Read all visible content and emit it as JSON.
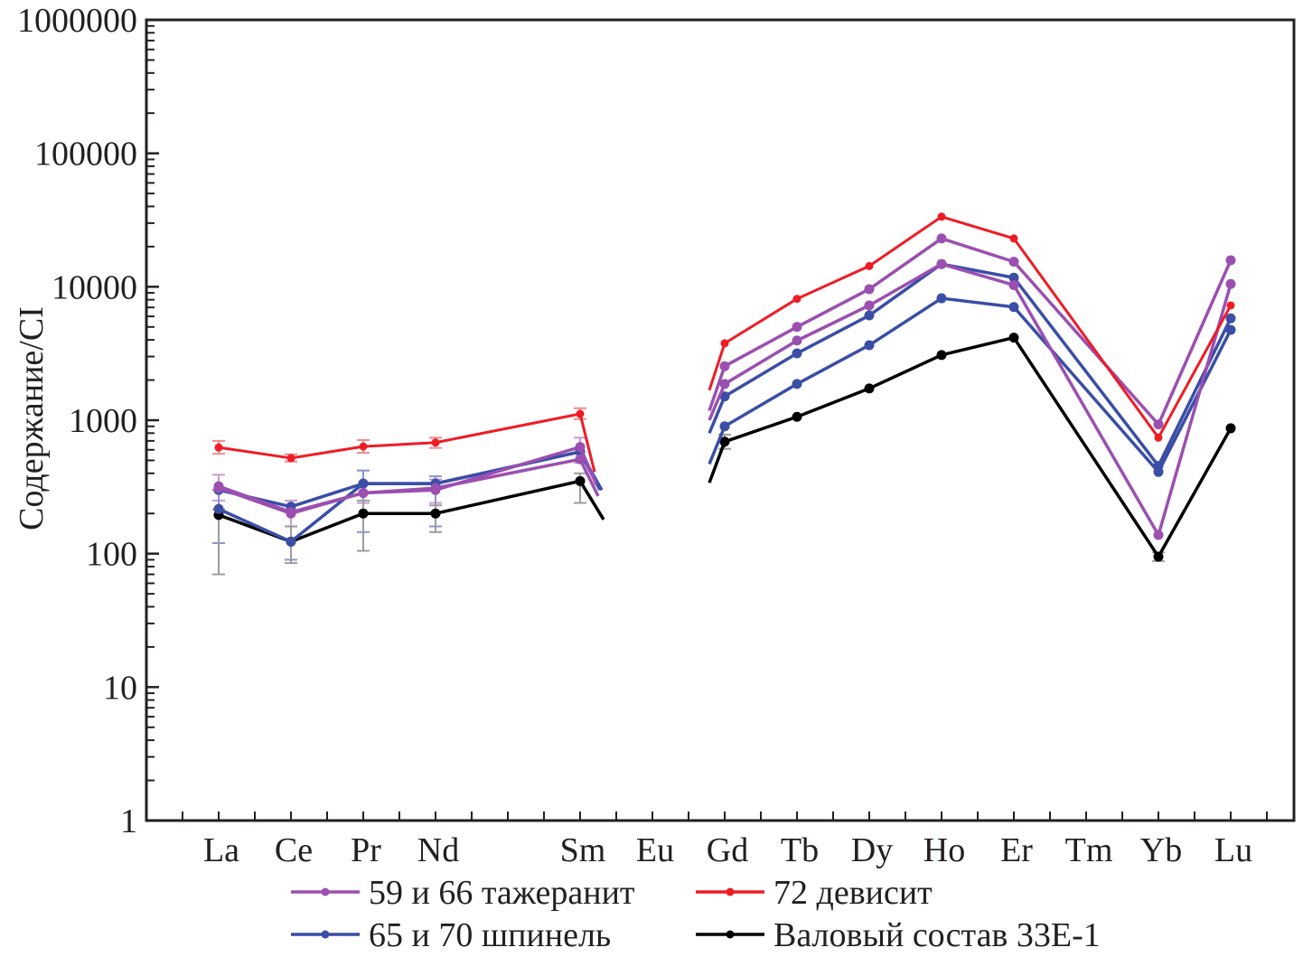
{
  "chart_data": {
    "type": "line",
    "title": "",
    "xlabel": "",
    "ylabel": "Содержание/CI",
    "yscale": "log",
    "ylim": [
      1,
      1000000
    ],
    "yticks": [
      {
        "value": 1,
        "label": "1"
      },
      {
        "value": 10,
        "label": "10"
      },
      {
        "value": 100,
        "label": "100"
      },
      {
        "value": 1000,
        "label": "1000"
      },
      {
        "value": 10000,
        "label": "10000"
      },
      {
        "value": 100000,
        "label": "100000"
      },
      {
        "value": 1000000,
        "label": "1000000"
      }
    ],
    "categories": [
      "La",
      "Ce",
      "Pr",
      "Nd",
      "",
      "Sm",
      "Eu",
      "Gd",
      "Tb",
      "Dy",
      "Ho",
      "Er",
      "Tm",
      "Yb",
      "Lu"
    ],
    "grid": false,
    "legend_position": "bottom",
    "legend": [
      {
        "label": "59 и 66 тажеранит",
        "color": "#9b4fb0"
      },
      {
        "label": "72 девисит",
        "color": "#ee1c25"
      },
      {
        "label": "65 и 70 шпинель",
        "color": "#3a4ea6"
      },
      {
        "label": "Валовый состав 33E-1",
        "color": "#000000"
      }
    ],
    "series": [
      {
        "name": "72 девисит",
        "group": "72 девисит",
        "color": "#ee1c25",
        "values": {
          "La": 625,
          "Ce": 520,
          "Pr": 635,
          "Nd": 680,
          "Sm": 1115,
          "Gd": 3770,
          "Tb": 8120,
          "Dy": 14300,
          "Ho": 33500,
          "Er": 23000,
          "Yb": 740,
          "Lu": 7250
        },
        "eu_anomaly_stubs": {
          "after_Sm": 410,
          "before_Gd": 1680
        }
      },
      {
        "name": "59 тажеранит",
        "group": "59 и 66 тажеранит",
        "color": "#9b4fb0",
        "values": {
          "La": 320,
          "Ce": 205,
          "Pr": 285,
          "Nd": 300,
          "Sm": 630,
          "Gd": 2540,
          "Tb": 5000,
          "Dy": 9600,
          "Ho": 23000,
          "Er": 15400,
          "Yb": 930,
          "Lu": 15800
        },
        "eu_anomaly_stubs": {
          "after_Sm": 330,
          "before_Gd": 1180
        }
      },
      {
        "name": "66 тажеранит",
        "group": "59 и 66 тажеранит",
        "color": "#9b4fb0",
        "values": {
          "La": 310,
          "Ce": 200,
          "Pr": 285,
          "Nd": 310,
          "Sm": 510,
          "Gd": 1870,
          "Tb": 3950,
          "Dy": 7250,
          "Ho": 14800,
          "Er": 10300,
          "Yb": 138,
          "Lu": 10500
        },
        "eu_anomaly_stubs": {
          "after_Sm": 270,
          "before_Gd": 1000
        }
      },
      {
        "name": "65 шпинель",
        "group": "65 и 70 шпинель",
        "color": "#3a4ea6",
        "values": {
          "La": 300,
          "Ce": 225,
          "Pr": 335,
          "Nd": 335,
          "Sm": 580,
          "Gd": 1510,
          "Tb": 3170,
          "Dy": 6100,
          "Ho": 14800,
          "Er": 11700,
          "Yb": 455,
          "Lu": 5800
        },
        "eu_anomaly_stubs": {
          "after_Sm": 300,
          "before_Gd": 800
        }
      },
      {
        "name": "70 шпинель",
        "group": "65 и 70 шпинель",
        "color": "#3a4ea6",
        "values": {
          "La": 216,
          "Ce": 123,
          "Pr": 335,
          "Nd": 335,
          "Sm": 580,
          "Gd": 900,
          "Tb": 1870,
          "Dy": 3650,
          "Ho": 8200,
          "Er": 7050,
          "Yb": 410,
          "Lu": 4750
        },
        "eu_anomaly_stubs": {
          "after_Sm": 300,
          "before_Gd": 470
        }
      },
      {
        "name": "Валовый состав 33E-1",
        "group": "Валовый состав 33E-1",
        "color": "#000000",
        "values": {
          "La": 195,
          "Ce": 123,
          "Pr": 200,
          "Nd": 200,
          "Sm": 350,
          "Gd": 690,
          "Tb": 1060,
          "Dy": 1730,
          "Ho": 3080,
          "Er": 4160,
          "Yb": 95,
          "Lu": 870
        },
        "eu_anomaly_stubs": {
          "after_Sm": 180,
          "before_Gd": 340
        }
      }
    ],
    "error_bars": [
      {
        "series": "72 девисит",
        "element": "La",
        "low": 560,
        "high": 700
      },
      {
        "series": "72 девисит",
        "element": "Ce",
        "low": 490,
        "high": 555
      },
      {
        "series": "72 девисит",
        "element": "Pr",
        "low": 570,
        "high": 710
      },
      {
        "series": "72 девисит",
        "element": "Nd",
        "low": 620,
        "high": 740
      },
      {
        "series": "72 девисит",
        "element": "Sm",
        "low": 1020,
        "high": 1230
      },
      {
        "series": "59 тажеранит",
        "element": "La",
        "low": 250,
        "high": 390
      },
      {
        "series": "59 тажеранит",
        "element": "Ce",
        "low": 160,
        "high": 250
      },
      {
        "series": "59 тажеранит",
        "element": "Pr",
        "low": 240,
        "high": 420
      },
      {
        "series": "59 тажеранит",
        "element": "Nd",
        "low": 240,
        "high": 360
      },
      {
        "series": "59 тажеранит",
        "element": "Sm",
        "low": 480,
        "high": 740
      },
      {
        "series": "70 шпинель",
        "element": "La",
        "low": 120,
        "high": 300
      },
      {
        "series": "70 шпинель",
        "element": "Ce",
        "low": 90,
        "high": 160
      },
      {
        "series": "70 шпинель",
        "element": "Pr",
        "low": 145,
        "high": 420
      },
      {
        "series": "70 шпинель",
        "element": "Nd",
        "low": 160,
        "high": 380
      },
      {
        "series": "Валовый состав 33E-1",
        "element": "La",
        "low": 70,
        "high": 215
      },
      {
        "series": "Валовый состав 33E-1",
        "element": "Ce",
        "low": 85,
        "high": 160
      },
      {
        "series": "Валовый состав 33E-1",
        "element": "Pr",
        "low": 105,
        "high": 250
      },
      {
        "series": "Валовый состав 33E-1",
        "element": "Nd",
        "low": 145,
        "high": 230
      },
      {
        "series": "Валовый состав 33E-1",
        "element": "Sm",
        "low": 240,
        "high": 400
      },
      {
        "series": "Валовый состав 33E-1",
        "element": "Gd",
        "low": 610,
        "high": 780
      },
      {
        "series": "Валовый состав 33E-1",
        "element": "Yb",
        "low": 88,
        "high": 102
      }
    ]
  }
}
